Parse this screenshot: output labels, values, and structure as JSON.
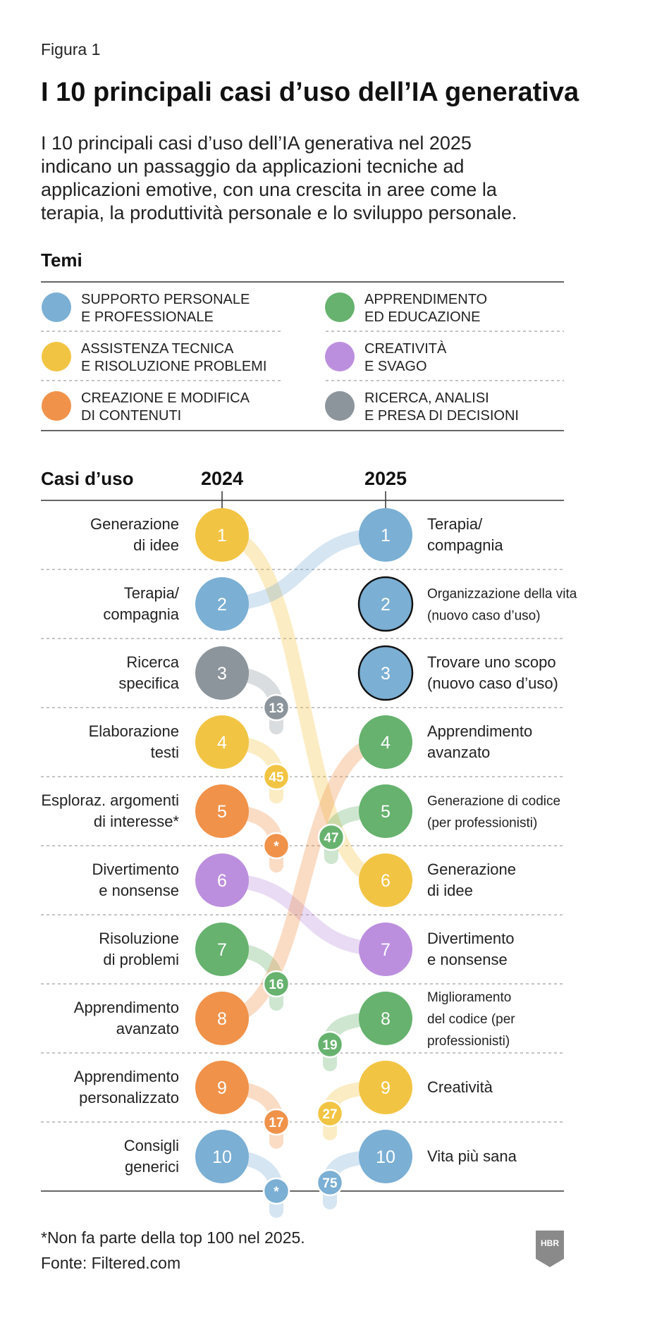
{
  "header": {
    "figure_label": "Figura 1",
    "title": "I 10 principali casi d’uso dell’IA generativa",
    "description": [
      "I 10 principali casi d’uso dell’IA generativa nel 2025",
      "indicano un passaggio da applicazioni tecniche ad",
      "applicazioni emotive, con una crescita in aree come la",
      "terapia, la produttività personale e lo sviluppo personale."
    ]
  },
  "legend": {
    "heading": "Temi",
    "themes": [
      {
        "id": "support",
        "color": "#7bafd4",
        "lines": [
          "SUPPORTO PERSONALE",
          "E PROFESSIONALE"
        ]
      },
      {
        "id": "learning",
        "color": "#66b26e",
        "lines": [
          "APPRENDIMENTO",
          "ED EDUCAZIONE"
        ]
      },
      {
        "id": "tech",
        "color": "#f2c443",
        "lines": [
          "ASSISTENZA TECNICA",
          "E RISOLUZIONE PROBLEMI"
        ]
      },
      {
        "id": "creative",
        "color": "#bc8fde",
        "lines": [
          "CREATIVITÀ",
          "E SVAGO"
        ]
      },
      {
        "id": "content",
        "color": "#f0924a",
        "lines": [
          "CREAZIONE E MODIFICA",
          "DI CONTENUTI"
        ]
      },
      {
        "id": "research",
        "color": "#8c959b",
        "lines": [
          "RICERCA, ANALISI",
          "E PRESA DI DECISIONI"
        ]
      }
    ]
  },
  "chart_data": {
    "type": "slope",
    "row_header": "Casi d’uso",
    "years": [
      "2024",
      "2025"
    ],
    "left": [
      {
        "rank": 1,
        "label": [
          "Generazione",
          "di idee"
        ],
        "theme": "tech",
        "rank_2025": 6
      },
      {
        "rank": 2,
        "label": [
          "Terapia/",
          "compagnia"
        ],
        "theme": "support",
        "rank_2025": 1
      },
      {
        "rank": 3,
        "label": [
          "Ricerca",
          "specifica"
        ],
        "theme": "research",
        "rank_2025": 13
      },
      {
        "rank": 4,
        "label": [
          "Elaborazione",
          "testi"
        ],
        "theme": "tech",
        "rank_2025": 45
      },
      {
        "rank": 5,
        "label": [
          "Esploraz. argomenti",
          "di interesse*"
        ],
        "theme": "content",
        "rank_2025": "*"
      },
      {
        "rank": 6,
        "label": [
          "Divertimento",
          "e nonsense"
        ],
        "theme": "creative",
        "rank_2025": 7
      },
      {
        "rank": 7,
        "label": [
          "Risoluzione",
          "di problemi"
        ],
        "theme": "learning",
        "rank_2025": 16
      },
      {
        "rank": 8,
        "label": [
          "Apprendimento",
          "avanzato"
        ],
        "theme": "content",
        "rank_2025": 4
      },
      {
        "rank": 9,
        "label": [
          "Apprendimento",
          "personalizzato"
        ],
        "theme": "content",
        "rank_2025": 17
      },
      {
        "rank": 10,
        "label": [
          "Consigli",
          "generici"
        ],
        "theme": "support",
        "rank_2025": "*"
      }
    ],
    "right": [
      {
        "rank": 1,
        "label": [
          "Terapia/",
          "compagnia"
        ],
        "theme": "support",
        "new": false,
        "rank_2024": 2
      },
      {
        "rank": 2,
        "label": [
          "Organizzazione della vita",
          "(nuovo caso d’uso)"
        ],
        "theme": "support",
        "new": true,
        "small": true
      },
      {
        "rank": 3,
        "label": [
          "Trovare uno scopo",
          "(nuovo caso d’uso)"
        ],
        "theme": "support",
        "new": true
      },
      {
        "rank": 4,
        "label": [
          "Apprendimento",
          "avanzato"
        ],
        "theme": "learning",
        "new": false,
        "rank_2024": 8
      },
      {
        "rank": 5,
        "label": [
          "Generazione di codice",
          "(per professionisti)"
        ],
        "theme": "learning",
        "new": false,
        "rank_2024": 47,
        "small": true
      },
      {
        "rank": 6,
        "label": [
          "Generazione",
          "di idee"
        ],
        "theme": "tech",
        "new": false,
        "rank_2024": 1
      },
      {
        "rank": 7,
        "label": [
          "Divertimento",
          "e nonsense"
        ],
        "theme": "creative",
        "new": false,
        "rank_2024": 6
      },
      {
        "rank": 8,
        "label": [
          "Miglioramento",
          "del codice (per",
          "professionisti)"
        ],
        "theme": "learning",
        "new": false,
        "rank_2024": 19,
        "small": true
      },
      {
        "rank": 9,
        "label": [
          "Creatività"
        ],
        "theme": "tech",
        "new": false,
        "rank_2024": 27
      },
      {
        "rank": 10,
        "label": [
          "Vita più sana"
        ],
        "theme": "support",
        "new": false,
        "rank_2024": 75
      }
    ]
  },
  "footer": {
    "note": "*Non fa parte della top 100 nel 2025.",
    "source": "Fonte: Filtered.com",
    "logo_text": "HBR"
  }
}
